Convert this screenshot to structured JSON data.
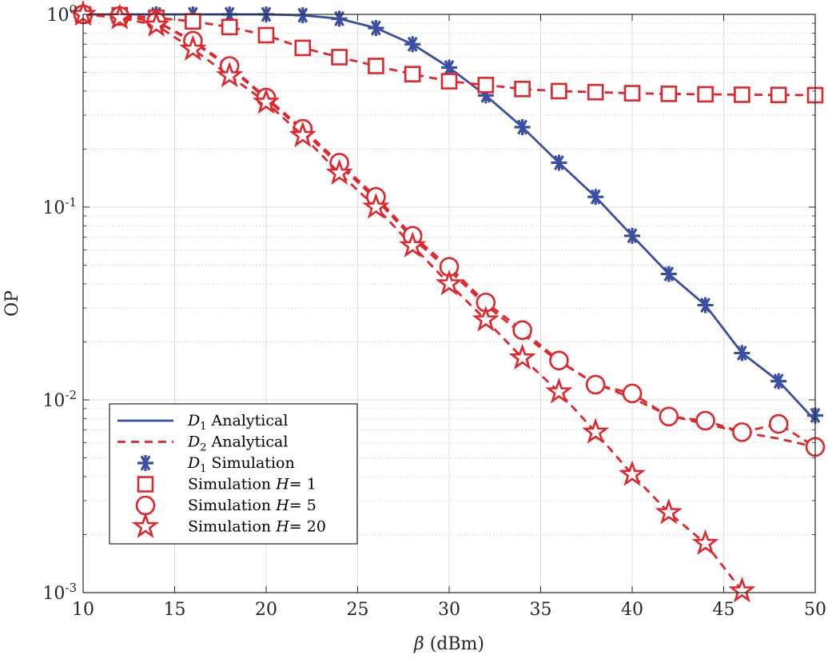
{
  "chart_data": {
    "type": "line",
    "title": "",
    "xlabel_symbol": "β",
    "xlabel_unit": " (dBm)",
    "ylabel": "OP",
    "xlim": [
      10,
      50
    ],
    "ylim": [
      0.001,
      1
    ],
    "yscale": "log",
    "grid": true,
    "minor_grid": true,
    "legend_position": "bottom-left",
    "x_ticks": [
      10,
      15,
      20,
      25,
      30,
      35,
      40,
      45,
      50
    ],
    "y_ticks": [
      {
        "value": 1,
        "base": "10",
        "exp": "0"
      },
      {
        "value": 0.1,
        "base": "10",
        "exp": "-1"
      },
      {
        "value": 0.01,
        "base": "10",
        "exp": "-2"
      },
      {
        "value": 0.001,
        "base": "10",
        "exp": "-3"
      }
    ],
    "series": [
      {
        "legend": {
          "sym": "D",
          "sub": "1",
          "rest": " Analytical"
        },
        "color": "#3a4fa3",
        "line": "solid",
        "marker": "none",
        "x": [
          10,
          12,
          14,
          16,
          18,
          20,
          22,
          24,
          26,
          28,
          30,
          32,
          34,
          36,
          38,
          40,
          42,
          44,
          46,
          48,
          50
        ],
        "y": [
          1.0,
          1.0,
          1.0,
          1.0,
          1.0,
          1.0,
          0.99,
          0.95,
          0.85,
          0.7,
          0.53,
          0.38,
          0.26,
          0.17,
          0.113,
          0.071,
          0.045,
          0.031,
          0.0175,
          0.0125,
          0.0078
        ]
      },
      {
        "legend": {
          "sym": "D",
          "sub": "2",
          "rest": " Analytical"
        },
        "color": "#e0252b",
        "line": "dashed",
        "marker": "none",
        "x": [
          10,
          12,
          14,
          16,
          18,
          20,
          22,
          24,
          26,
          28,
          30,
          32,
          34,
          36,
          38,
          40,
          42,
          44,
          46,
          48,
          50
        ],
        "y": [
          1.0,
          0.98,
          0.92,
          0.72,
          0.53,
          0.365,
          0.25,
          0.165,
          0.11,
          0.069,
          0.047,
          0.031,
          0.022,
          0.0158,
          0.0122,
          0.0102,
          0.0083,
          0.0075,
          0.0068,
          0.0063,
          0.0057
        ]
      },
      {
        "legend": {
          "sym": "D",
          "sub": "1",
          "rest": " Simulation"
        },
        "color": "#3a4fa3",
        "line": "none",
        "marker": "asterisk",
        "x": [
          10,
          12,
          14,
          16,
          18,
          20,
          22,
          24,
          26,
          28,
          30,
          32,
          34,
          36,
          38,
          40,
          42,
          44,
          46,
          48,
          50
        ],
        "y": [
          1.0,
          1.0,
          1.0,
          1.0,
          1.0,
          1.0,
          0.99,
          0.95,
          0.85,
          0.7,
          0.53,
          0.38,
          0.26,
          0.17,
          0.113,
          0.071,
          0.045,
          0.031,
          0.0175,
          0.0125,
          0.0083
        ]
      },
      {
        "legend": {
          "pre": "Simulation ",
          "sym": "H",
          "rest": "= 1"
        },
        "color": "#e0252b",
        "line": "dashed",
        "marker": "square",
        "x": [
          10,
          12,
          14,
          16,
          18,
          20,
          22,
          24,
          26,
          28,
          30,
          32,
          34,
          36,
          38,
          40,
          42,
          44,
          46,
          48,
          50
        ],
        "y": [
          1.0,
          0.99,
          0.96,
          0.92,
          0.86,
          0.78,
          0.67,
          0.6,
          0.54,
          0.49,
          0.45,
          0.43,
          0.41,
          0.4,
          0.395,
          0.39,
          0.387,
          0.385,
          0.383,
          0.382,
          0.381
        ]
      },
      {
        "legend": {
          "pre": "Simulation ",
          "sym": "H",
          "rest": "= 5"
        },
        "color": "#e0252b",
        "line": "dashed",
        "marker": "circle",
        "x": [
          10,
          12,
          14,
          16,
          18,
          20,
          22,
          24,
          26,
          28,
          30,
          32,
          34,
          36,
          38,
          40,
          42,
          44,
          46,
          48,
          50
        ],
        "y": [
          1.0,
          0.98,
          0.92,
          0.73,
          0.54,
          0.37,
          0.255,
          0.17,
          0.113,
          0.071,
          0.049,
          0.032,
          0.023,
          0.016,
          0.012,
          0.0108,
          0.0082,
          0.0078,
          0.0068,
          0.0075,
          0.0057
        ]
      },
      {
        "legend": {
          "pre": "Simulation ",
          "sym": "H",
          "rest": "= 20"
        },
        "color": "#e0252b",
        "line": "dashed",
        "marker": "star",
        "x": [
          10,
          12,
          14,
          16,
          18,
          20,
          22,
          24,
          26,
          28,
          30,
          32,
          34,
          36,
          38,
          40,
          42,
          44,
          46
        ],
        "y": [
          1.0,
          0.96,
          0.88,
          0.66,
          0.48,
          0.35,
          0.235,
          0.15,
          0.1,
          0.063,
          0.04,
          0.026,
          0.0165,
          0.011,
          0.0068,
          0.0041,
          0.0026,
          0.0018,
          0.00102
        ]
      }
    ]
  }
}
